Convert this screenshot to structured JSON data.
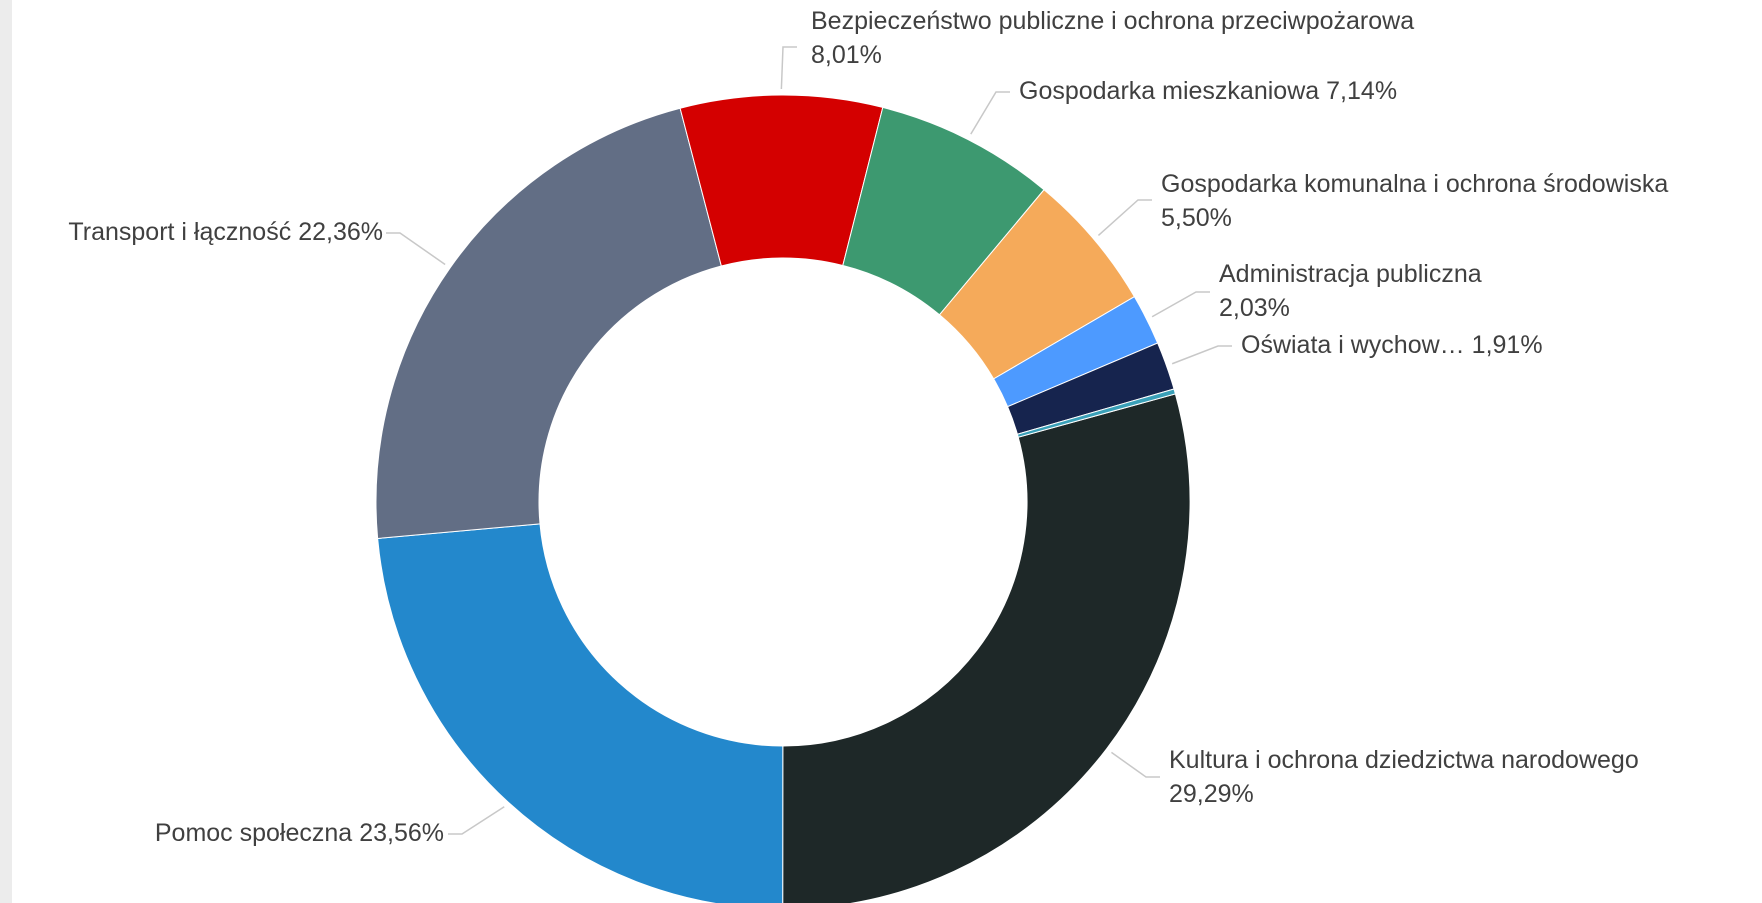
{
  "chart_data": {
    "type": "donut",
    "categories": [
      "Kultura i ochrona dziedzictwa narodowego",
      "Pomoc społeczna",
      "Transport i łączność",
      "Bezpieczeństwo publiczne i ochrona przeciwpożarowa",
      "Gospodarka mieszkaniowa",
      "Gospodarka komunalna i ochrona środowiska",
      "Administracja publiczna",
      "Oświata i wychow…",
      null
    ],
    "values": [
      29.29,
      23.56,
      22.36,
      8.01,
      7.14,
      5.5,
      2.03,
      1.91,
      0.2
    ],
    "value_labels": [
      "29,29%",
      "23,56%",
      "22,36%",
      "8,01%",
      "7,14%",
      "5,50%",
      "2,03%",
      "1,91%",
      null
    ],
    "colors": [
      "#1e2828",
      "#2388cc",
      "#626e85",
      "#d40000",
      "#3d9970",
      "#f5aa5a",
      "#4d9aff",
      "#16244e",
      "#3aa0b8"
    ]
  }
}
